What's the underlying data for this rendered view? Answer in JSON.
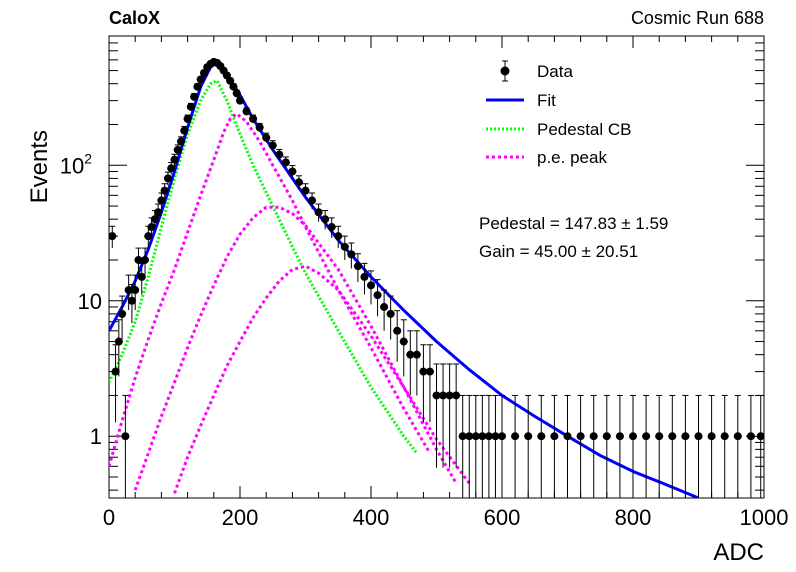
{
  "header": {
    "left_label": "CaloX",
    "right_label": "Cosmic Run 688"
  },
  "stats": {
    "pedestal": "Pedestal = 147.83 ± 1.59",
    "gain": "Gain = 45.00 ± 20.51"
  },
  "colors": {
    "data": "#000000",
    "fit": "#0000ff",
    "pedestal": "#00ff00",
    "pe_peak": "#ff00ff"
  },
  "chart_data": {
    "type": "scatter",
    "xlabel": "ADC",
    "ylabel": "Events",
    "xlim": [
      0,
      1000
    ],
    "ylim": [
      0.35,
      900
    ],
    "yscale": "log",
    "x_ticks": [
      "0",
      "200",
      "400",
      "600",
      "800",
      "1000"
    ],
    "y_ticks": [
      {
        "value": 1,
        "label": "1"
      },
      {
        "value": 10,
        "label": "10"
      },
      {
        "value": 100,
        "label": "10",
        "sup": "2"
      }
    ],
    "legend": {
      "position": "top-right",
      "entries": [
        {
          "label": "Data",
          "key": "data"
        },
        {
          "label": "Fit",
          "key": "fit"
        },
        {
          "label": "Pedestal CB",
          "key": "pedestal"
        },
        {
          "label": "p.e. peak",
          "key": "pe_peak"
        }
      ]
    },
    "data_points": [
      [
        5,
        30
      ],
      [
        10,
        3
      ],
      [
        15,
        5
      ],
      [
        20,
        8
      ],
      [
        25,
        1
      ],
      [
        30,
        12
      ],
      [
        35,
        10
      ],
      [
        40,
        12
      ],
      [
        45,
        20
      ],
      [
        50,
        15
      ],
      [
        55,
        20
      ],
      [
        60,
        30
      ],
      [
        65,
        35
      ],
      [
        70,
        40
      ],
      [
        75,
        45
      ],
      [
        80,
        55
      ],
      [
        85,
        65
      ],
      [
        90,
        80
      ],
      [
        95,
        95
      ],
      [
        100,
        110
      ],
      [
        105,
        130
      ],
      [
        110,
        150
      ],
      [
        115,
        180
      ],
      [
        120,
        220
      ],
      [
        125,
        270
      ],
      [
        130,
        320
      ],
      [
        135,
        380
      ],
      [
        140,
        430
      ],
      [
        145,
        480
      ],
      [
        150,
        530
      ],
      [
        155,
        560
      ],
      [
        160,
        580
      ],
      [
        165,
        570
      ],
      [
        170,
        540
      ],
      [
        175,
        500
      ],
      [
        180,
        460
      ],
      [
        185,
        420
      ],
      [
        190,
        380
      ],
      [
        195,
        340
      ],
      [
        200,
        300
      ],
      [
        210,
        250
      ],
      [
        220,
        220
      ],
      [
        230,
        190
      ],
      [
        240,
        160
      ],
      [
        250,
        140
      ],
      [
        260,
        120
      ],
      [
        270,
        105
      ],
      [
        280,
        90
      ],
      [
        290,
        75
      ],
      [
        300,
        65
      ],
      [
        310,
        55
      ],
      [
        320,
        45
      ],
      [
        330,
        40
      ],
      [
        340,
        35
      ],
      [
        350,
        30
      ],
      [
        360,
        25
      ],
      [
        370,
        22
      ],
      [
        380,
        18
      ],
      [
        390,
        15
      ],
      [
        400,
        13
      ],
      [
        410,
        11
      ],
      [
        420,
        9
      ],
      [
        430,
        8
      ],
      [
        440,
        6
      ],
      [
        450,
        5
      ],
      [
        460,
        4
      ],
      [
        470,
        4
      ],
      [
        480,
        3
      ],
      [
        490,
        3
      ],
      [
        500,
        2
      ],
      [
        510,
        2
      ],
      [
        520,
        2
      ],
      [
        530,
        2
      ],
      [
        540,
        1
      ],
      [
        550,
        1
      ],
      [
        560,
        1
      ],
      [
        570,
        1
      ],
      [
        580,
        1
      ],
      [
        590,
        1
      ],
      [
        600,
        1
      ],
      [
        620,
        1
      ],
      [
        640,
        1
      ],
      [
        660,
        1
      ],
      [
        680,
        1
      ],
      [
        700,
        1
      ],
      [
        720,
        1
      ],
      [
        740,
        1
      ],
      [
        760,
        1
      ],
      [
        780,
        1
      ],
      [
        800,
        1
      ],
      [
        820,
        1
      ],
      [
        840,
        1
      ],
      [
        860,
        1
      ],
      [
        880,
        1
      ],
      [
        900,
        1
      ],
      [
        920,
        1
      ],
      [
        940,
        1
      ],
      [
        960,
        1
      ],
      [
        980,
        1
      ],
      [
        995,
        1
      ]
    ],
    "fit_curve": [
      [
        0,
        6
      ],
      [
        20,
        9
      ],
      [
        40,
        14
      ],
      [
        60,
        24
      ],
      [
        80,
        45
      ],
      [
        100,
        90
      ],
      [
        120,
        190
      ],
      [
        140,
        380
      ],
      [
        155,
        530
      ],
      [
        165,
        575
      ],
      [
        180,
        470
      ],
      [
        200,
        330
      ],
      [
        220,
        220
      ],
      [
        250,
        130
      ],
      [
        280,
        80
      ],
      [
        300,
        58
      ],
      [
        350,
        28
      ],
      [
        400,
        15
      ],
      [
        450,
        8.5
      ],
      [
        500,
        5
      ],
      [
        550,
        3.1
      ],
      [
        600,
        2
      ],
      [
        650,
        1.4
      ],
      [
        700,
        1
      ],
      [
        750,
        0.72
      ],
      [
        800,
        0.55
      ],
      [
        850,
        0.44
      ],
      [
        900,
        0.35
      ]
    ],
    "pedestal_curve": [
      [
        0,
        2.5
      ],
      [
        20,
        4
      ],
      [
        40,
        7
      ],
      [
        60,
        15
      ],
      [
        80,
        35
      ],
      [
        100,
        80
      ],
      [
        120,
        170
      ],
      [
        140,
        300
      ],
      [
        155,
        400
      ],
      [
        165,
        420
      ],
      [
        180,
        300
      ],
      [
        200,
        170
      ],
      [
        220,
        100
      ],
      [
        250,
        50
      ],
      [
        280,
        25
      ],
      [
        300,
        16
      ],
      [
        350,
        6
      ],
      [
        400,
        2.3
      ],
      [
        450,
        1
      ],
      [
        470,
        0.75
      ]
    ],
    "pe_peaks": [
      {
        "points": [
          [
            0,
            0.6
          ],
          [
            20,
            1.3
          ],
          [
            40,
            2.7
          ],
          [
            60,
            5.2
          ],
          [
            80,
            9.6
          ],
          [
            100,
            17
          ],
          [
            120,
            32
          ],
          [
            140,
            60
          ],
          [
            160,
            110
          ],
          [
            175,
            175
          ],
          [
            185,
            220
          ],
          [
            195,
            240
          ],
          [
            210,
            210
          ],
          [
            230,
            150
          ],
          [
            250,
            100
          ],
          [
            280,
            55
          ],
          [
            300,
            35
          ],
          [
            350,
            12
          ],
          [
            400,
            4.5
          ],
          [
            450,
            1.6
          ],
          [
            490,
            0.75
          ]
        ]
      },
      {
        "points": [
          [
            40,
            0.4
          ],
          [
            60,
            0.75
          ],
          [
            80,
            1.4
          ],
          [
            100,
            2.5
          ],
          [
            120,
            4.5
          ],
          [
            140,
            7.8
          ],
          [
            160,
            13
          ],
          [
            180,
            21
          ],
          [
            200,
            31
          ],
          [
            220,
            41
          ],
          [
            240,
            49
          ],
          [
            260,
            49
          ],
          [
            280,
            44
          ],
          [
            300,
            36
          ],
          [
            350,
            17
          ],
          [
            400,
            6.5
          ],
          [
            450,
            2.3
          ],
          [
            500,
            0.8
          ],
          [
            530,
            0.45
          ]
        ]
      },
      {
        "points": [
          [
            100,
            0.38
          ],
          [
            120,
            0.7
          ],
          [
            140,
            1.2
          ],
          [
            160,
            2
          ],
          [
            180,
            3.3
          ],
          [
            200,
            5
          ],
          [
            220,
            7.5
          ],
          [
            240,
            10.5
          ],
          [
            260,
            14
          ],
          [
            280,
            17
          ],
          [
            300,
            18
          ],
          [
            320,
            16
          ],
          [
            350,
            12
          ],
          [
            400,
            5.5
          ],
          [
            450,
            2.3
          ],
          [
            500,
            0.95
          ],
          [
            550,
            0.45
          ]
        ]
      }
    ]
  }
}
